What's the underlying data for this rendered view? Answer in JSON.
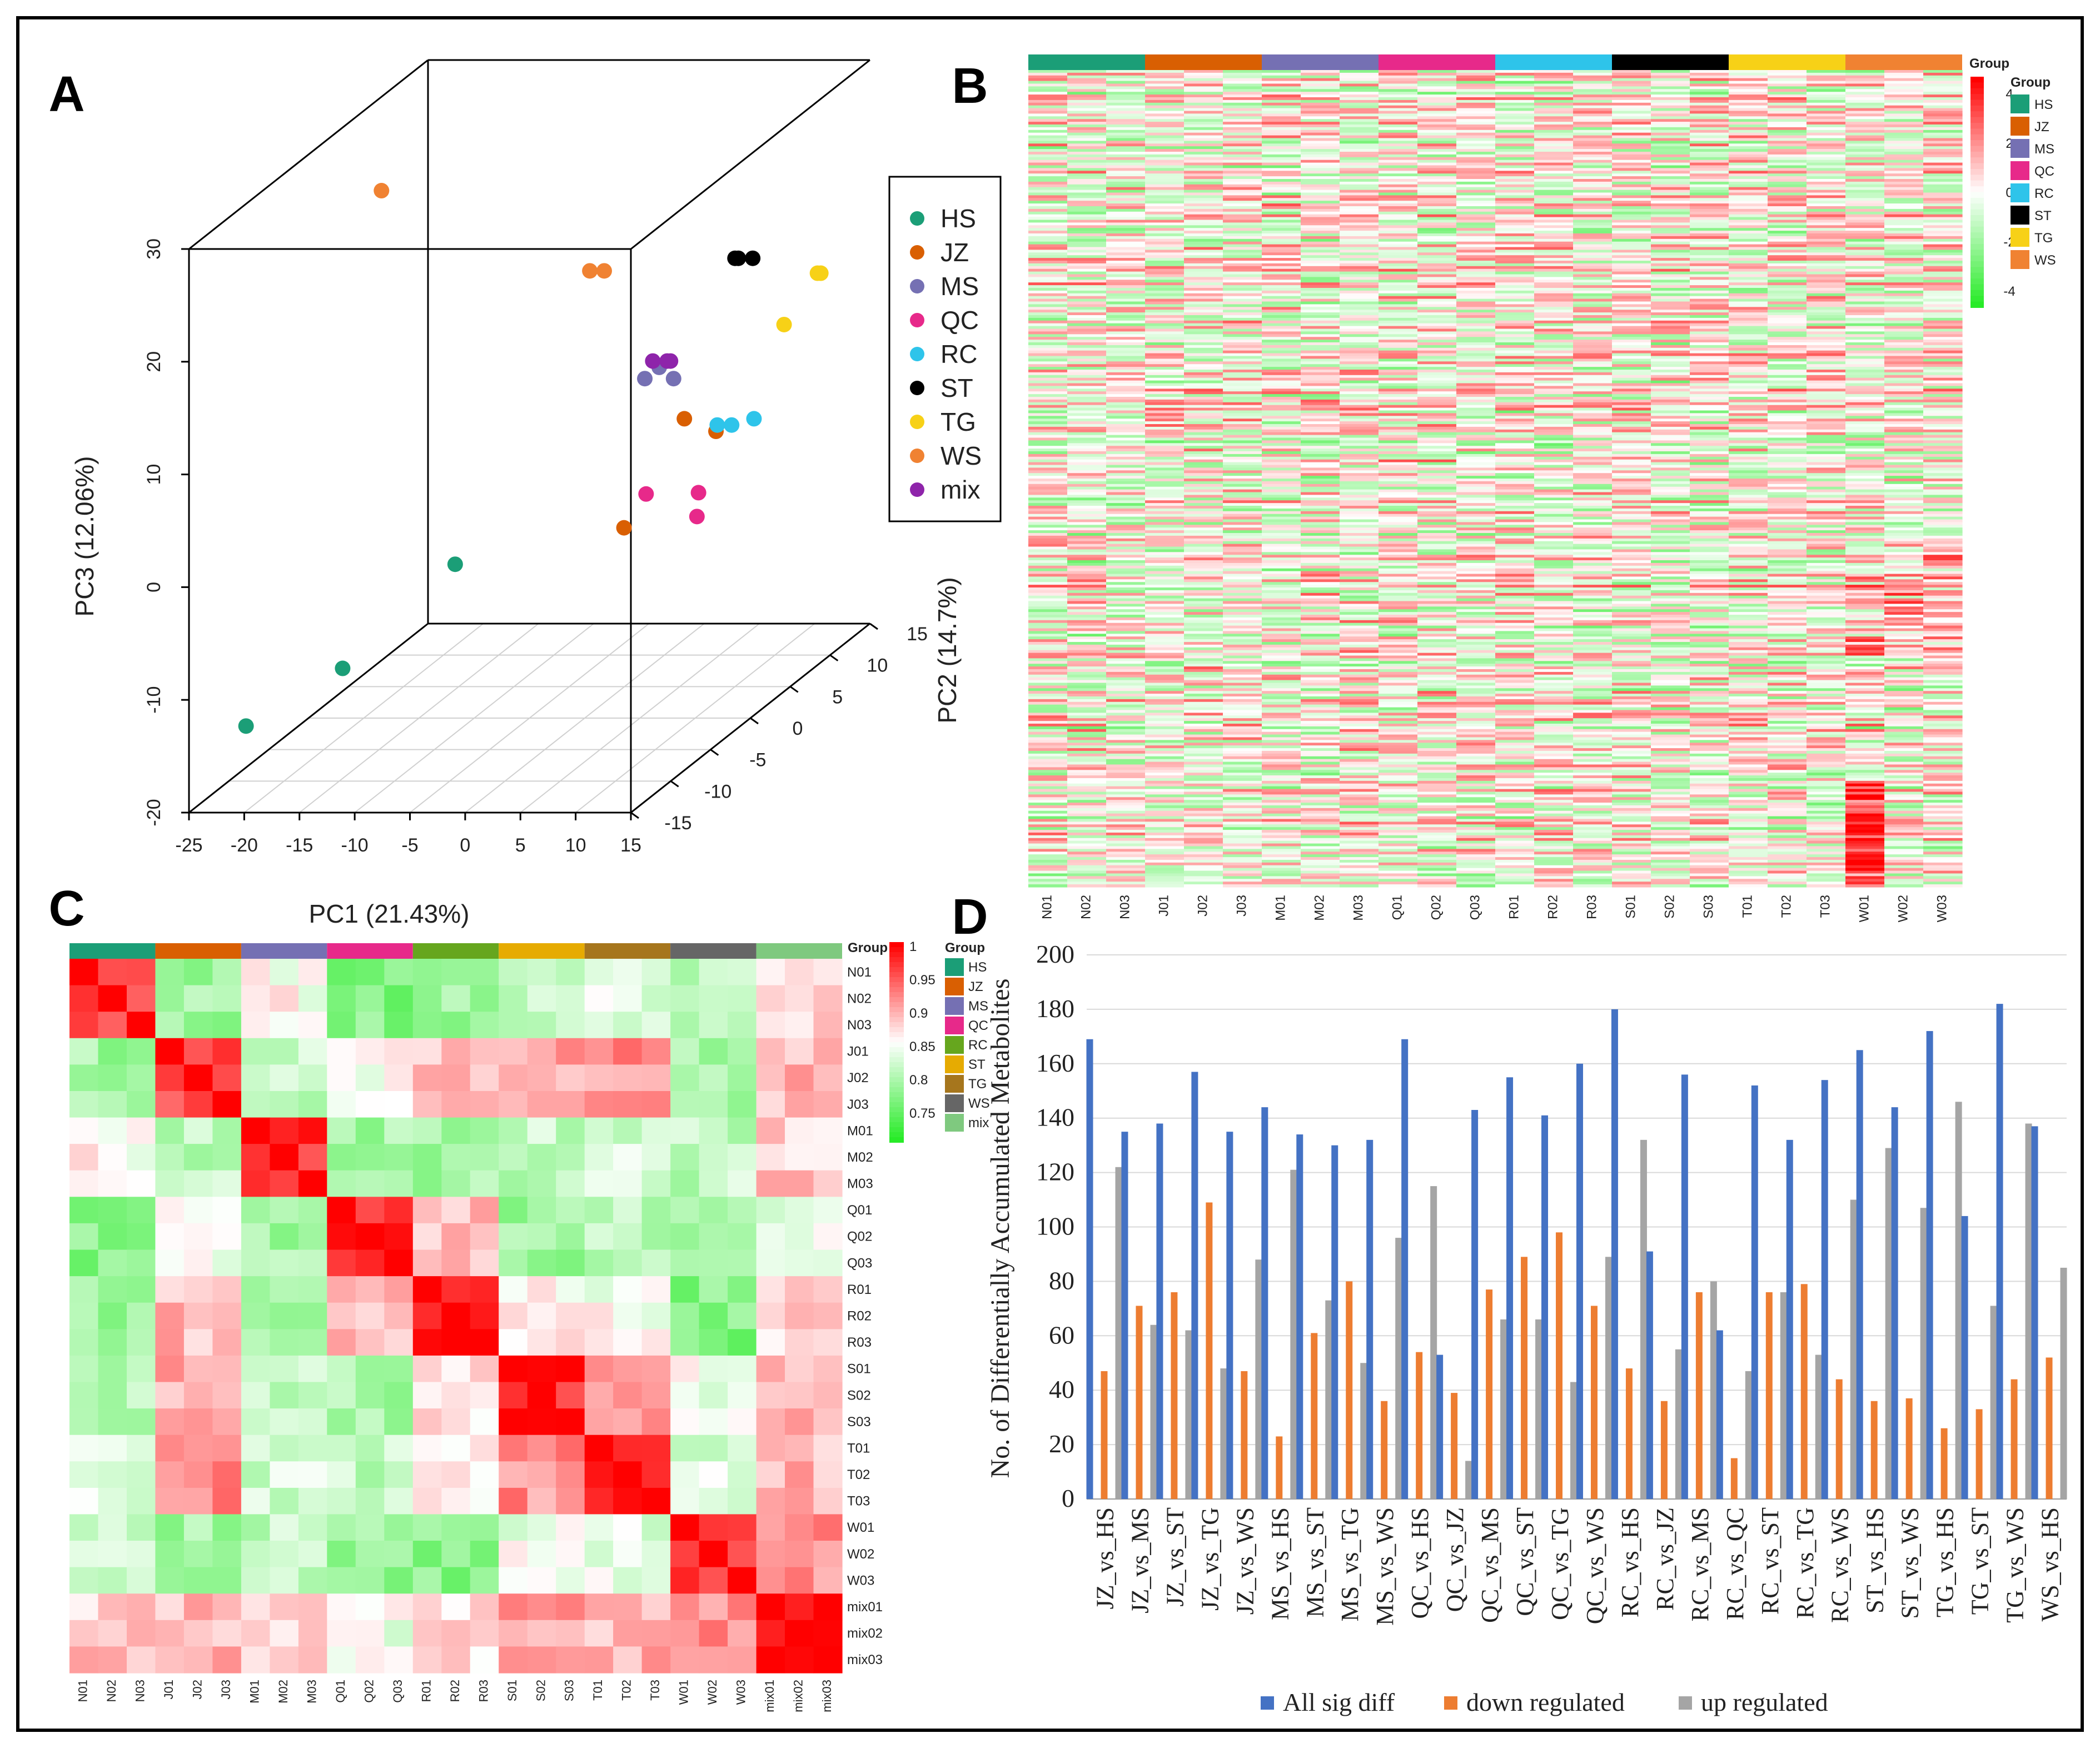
{
  "panel_labels": [
    "A",
    "B",
    "C",
    "D"
  ],
  "chart_data": [
    {
      "type": "scatter",
      "panel": "A",
      "xlabel": "PC1 (21.43%)",
      "ylabel": "PC2 (14.7%)",
      "zlabel": "PC3 (12.06%)",
      "xlim": [
        -25,
        15
      ],
      "ylim": [
        -15,
        15
      ],
      "zlim": [
        -20,
        30
      ],
      "x_ticks": [
        "-25",
        "-20",
        "-15",
        "-10",
        "-5",
        "0",
        "5",
        "10",
        "15"
      ],
      "y_ticks": [
        "-15",
        "-10",
        "-5",
        "0",
        "5",
        "10",
        "15"
      ],
      "z_ticks": [
        "-20",
        "-10",
        "0",
        "10",
        "20",
        "30"
      ],
      "legend": [
        {
          "name": "HS",
          "color": "#1b9e77"
        },
        {
          "name": "JZ",
          "color": "#d95f02"
        },
        {
          "name": "MS",
          "color": "#7570b3"
        },
        {
          "name": "QC",
          "color": "#e7298a"
        },
        {
          "name": "RC",
          "color": "#2ec4ea"
        },
        {
          "name": "ST",
          "color": "#000000"
        },
        {
          "name": "TG",
          "color": "#f7d117"
        },
        {
          "name": "WS",
          "color": "#f08232"
        },
        {
          "name": "mix",
          "color": "#8e24aa"
        }
      ],
      "points": [
        {
          "group": "HS",
          "x": -22,
          "y": -12,
          "z": -14
        },
        {
          "group": "HS",
          "x": -15,
          "y": -10,
          "z": -10
        },
        {
          "group": "HS",
          "x": -8,
          "y": -6,
          "z": -3
        },
        {
          "group": "JZ",
          "x": 5,
          "y": -2,
          "z": -2
        },
        {
          "group": "JZ",
          "x": 8,
          "y": 1,
          "z": 6
        },
        {
          "group": "JZ",
          "x": 12,
          "y": -1,
          "z": 6
        },
        {
          "group": "MS",
          "x": 4,
          "y": 2,
          "z": 9
        },
        {
          "group": "MS",
          "x": 5,
          "y": 2,
          "z": 10
        },
        {
          "group": "MS",
          "x": 6,
          "y": 2,
          "z": 9
        },
        {
          "group": "QC",
          "x": 7,
          "y": -2,
          "z": 1
        },
        {
          "group": "QC",
          "x": 10,
          "y": 0,
          "z": 0
        },
        {
          "group": "QC",
          "x": 11,
          "y": -2,
          "z": -1
        },
        {
          "group": "RC",
          "x": 12,
          "y": 0,
          "z": 6
        },
        {
          "group": "RC",
          "x": 13,
          "y": 0,
          "z": 6
        },
        {
          "group": "RC",
          "x": 14,
          "y": 1,
          "z": 6
        },
        {
          "group": "ST",
          "x": 10,
          "y": 5,
          "z": 18
        },
        {
          "group": "ST",
          "x": 10,
          "y": 5,
          "z": 18
        },
        {
          "group": "ST",
          "x": 11,
          "y": 5,
          "z": 18
        },
        {
          "group": "TG",
          "x": 13,
          "y": 7,
          "z": 11
        },
        {
          "group": "TG",
          "x": 15,
          "y": 8,
          "z": 15
        },
        {
          "group": "TG",
          "x": 15,
          "y": 8,
          "z": 15
        },
        {
          "group": "WS",
          "x": -22,
          "y": 5,
          "z": 24
        },
        {
          "group": "WS",
          "x": -2,
          "y": 3,
          "z": 18
        },
        {
          "group": "WS",
          "x": -1,
          "y": 3,
          "z": 18
        },
        {
          "group": "mix",
          "x": 4,
          "y": 3,
          "z": 10
        },
        {
          "group": "mix",
          "x": 5,
          "y": 3,
          "z": 10
        },
        {
          "group": "mix",
          "x": 5,
          "y": 3,
          "z": 10
        }
      ]
    },
    {
      "type": "heatmap",
      "panel": "B",
      "columns": [
        "N01",
        "N02",
        "N03",
        "J01",
        "J02",
        "J03",
        "M01",
        "M02",
        "M03",
        "Q01",
        "Q02",
        "Q03",
        "R01",
        "R02",
        "R03",
        "S01",
        "S02",
        "S03",
        "T01",
        "T02",
        "T03",
        "W01",
        "W02",
        "W03"
      ],
      "col_groups": [
        "HS",
        "JZ",
        "MS",
        "QC",
        "RC",
        "ST",
        "TG",
        "WS"
      ],
      "group_colors": {
        "HS": "#1b9e77",
        "JZ": "#d95f02",
        "MS": "#7570b3",
        "QC": "#e7298a",
        "RC": "#2ec4ea",
        "ST": "#000000",
        "TG": "#f7d117",
        "WS": "#f08232"
      },
      "legend_title": "Group",
      "colorbar_title": "Group",
      "colorbar_ticks": [
        "4",
        "2",
        "0",
        "-2",
        "-4"
      ],
      "value_range": [
        -4,
        4
      ],
      "n_rows": 300
    },
    {
      "type": "heatmap",
      "panel": "C",
      "labels": [
        "N01",
        "N02",
        "N03",
        "J01",
        "J02",
        "J03",
        "M01",
        "M02",
        "M03",
        "Q01",
        "Q02",
        "Q03",
        "R01",
        "R02",
        "R03",
        "S01",
        "S02",
        "S03",
        "T01",
        "T02",
        "T03",
        "W01",
        "W02",
        "W03",
        "mix01",
        "mix02",
        "mix03"
      ],
      "groups": [
        "HS",
        "JZ",
        "MS",
        "QC",
        "RC",
        "ST",
        "TG",
        "WS",
        "mix"
      ],
      "group_colors": {
        "HS": "#1b9e77",
        "JZ": "#d95f02",
        "MS": "#7570b3",
        "QC": "#e7298a",
        "RC": "#66a61e",
        "ST": "#e6ab02",
        "TG": "#a6761d",
        "WS": "#666666",
        "mix": "#7fc97f"
      },
      "legend_title": "Group",
      "colorbar_ticks": [
        "1",
        "0.95",
        "0.9",
        "0.85",
        "0.8",
        "0.75"
      ],
      "value_range": [
        0.72,
        1.0
      ]
    },
    {
      "type": "bar",
      "panel": "D",
      "ylabel": "No. of Differentially Accumulated Metabolites",
      "ylim": [
        0,
        200
      ],
      "y_ticks": [
        "0",
        "20",
        "40",
        "60",
        "80",
        "100",
        "120",
        "140",
        "160",
        "180",
        "200"
      ],
      "categories": [
        "JZ_vs_HS",
        "JZ_vs_MS",
        "JZ_vs_ST",
        "JZ_vs_TG",
        "JZ_vs_WS",
        "MS_vs_HS",
        "MS_vs_ST",
        "MS_vs_TG",
        "MS_vs_WS",
        "QC_vs_HS",
        "QC_vs_JZ",
        "QC_vs_MS",
        "QC_vs_ST",
        "QC_vs_TG",
        "QC_vs_WS",
        "RC_vs_HS",
        "RC_vs_JZ",
        "RC_vs_MS",
        "RC_vs_QC",
        "RC_vs_ST",
        "RC_vs_TG",
        "RC_vs_WS",
        "ST_vs_HS",
        "ST_vs_WS",
        "TG_vs_HS",
        "TG_vs_ST",
        "TG_vs_WS",
        "WS_vs_HS"
      ],
      "series": [
        {
          "name": "All sig diff",
          "color": "#4472c4",
          "values": [
            169,
            135,
            138,
            157,
            135,
            144,
            134,
            130,
            132,
            169,
            53,
            143,
            155,
            141,
            160,
            180,
            91,
            156,
            62,
            152,
            132,
            154,
            165,
            144,
            172,
            104,
            182,
            137
          ]
        },
        {
          "name": "down regulated",
          "color": "#ed7d31",
          "values": [
            47,
            71,
            76,
            109,
            47,
            23,
            61,
            80,
            36,
            54,
            39,
            77,
            89,
            98,
            71,
            48,
            36,
            76,
            15,
            76,
            79,
            44,
            36,
            37,
            26,
            33,
            44,
            52
          ]
        },
        {
          "name": "up regulated",
          "color": "#a5a5a5",
          "values": [
            122,
            64,
            62,
            48,
            88,
            121,
            73,
            50,
            96,
            115,
            14,
            66,
            66,
            43,
            89,
            132,
            55,
            80,
            47,
            76,
            53,
            110,
            129,
            107,
            146,
            71,
            138,
            85
          ]
        }
      ]
    }
  ]
}
